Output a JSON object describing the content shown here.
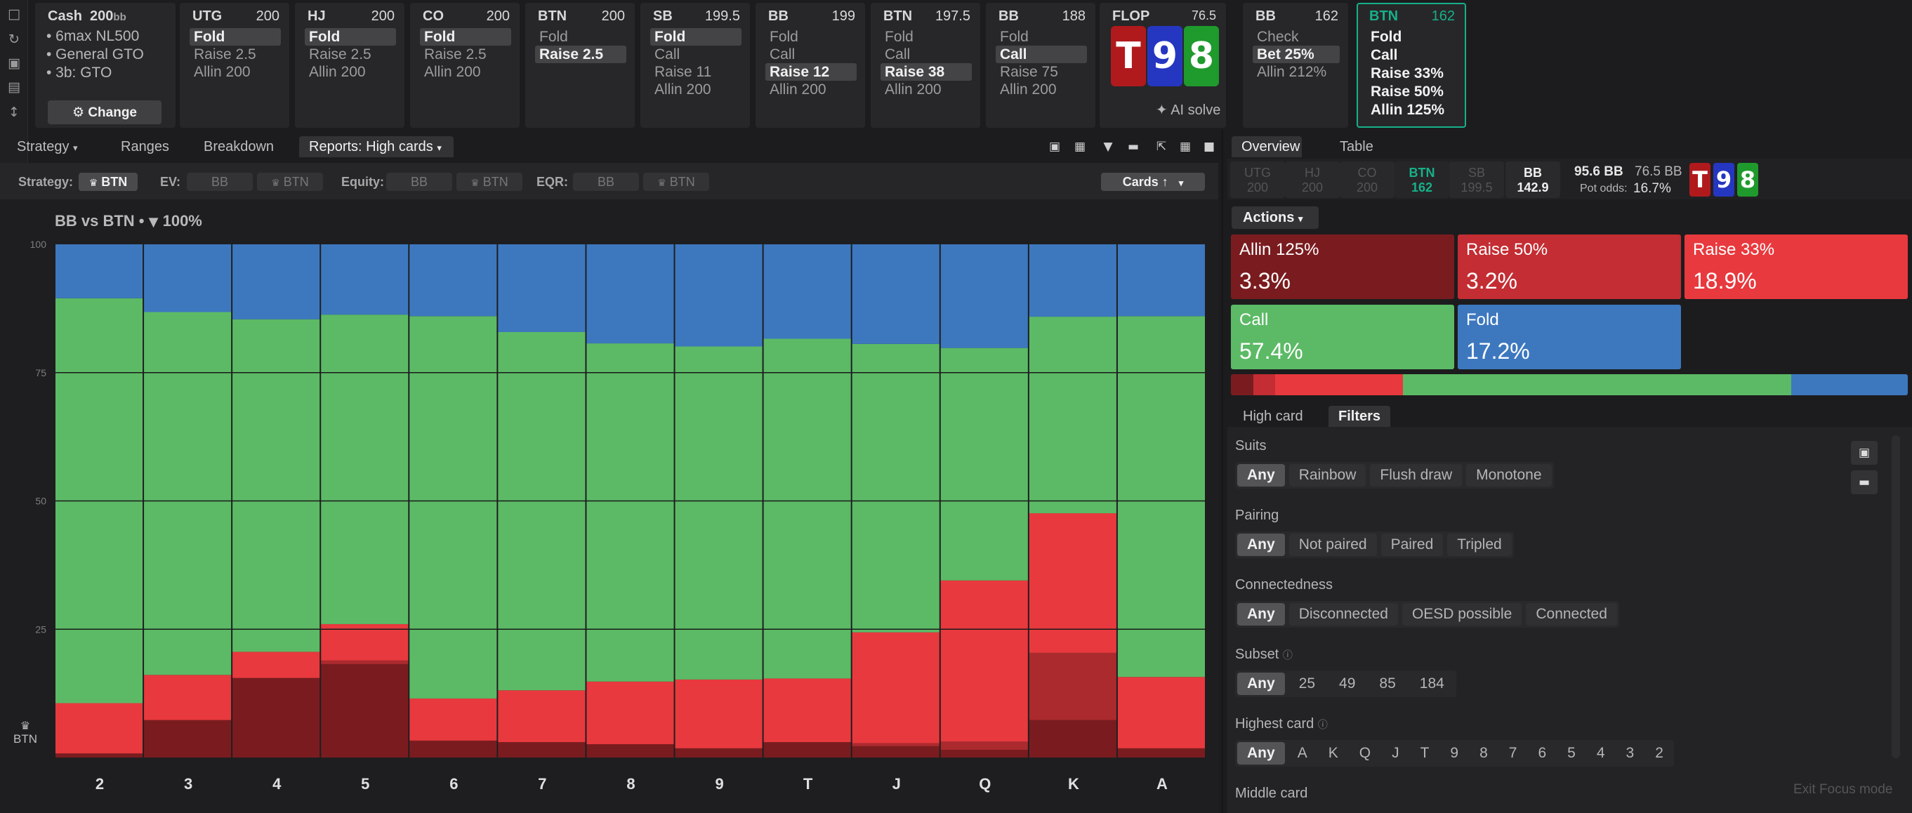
{
  "left_toolbar": {
    "icons": [
      "bookmark-icon",
      "refresh-icon",
      "save-icon",
      "gamepad-icon",
      "collapse-icon"
    ]
  },
  "game": {
    "type": "Cash",
    "stack": "200",
    "stack_unit": "bb",
    "lines": [
      "• 6max NL500",
      "• General GTO",
      "• 3b: GTO"
    ],
    "change_label": "Change"
  },
  "positions": [
    {
      "pos": "UTG",
      "stack": "200",
      "options": [
        "Fold",
        "Raise 2.5",
        "Allin 200"
      ],
      "selected": 0
    },
    {
      "pos": "HJ",
      "stack": "200",
      "options": [
        "Fold",
        "Raise 2.5",
        "Allin 200"
      ],
      "selected": 0
    },
    {
      "pos": "CO",
      "stack": "200",
      "options": [
        "Fold",
        "Raise 2.5",
        "Allin 200"
      ],
      "selected": 0
    },
    {
      "pos": "BTN",
      "stack": "200",
      "options": [
        "Fold",
        "Raise 2.5"
      ],
      "selected": 1
    },
    {
      "pos": "SB",
      "stack": "199.5",
      "options": [
        "Fold",
        "Call",
        "Raise 11",
        "Allin 200"
      ],
      "selected": 0
    },
    {
      "pos": "BB",
      "stack": "199",
      "options": [
        "Fold",
        "Call",
        "Raise 12",
        "Allin 200"
      ],
      "selected": 2
    },
    {
      "pos": "BTN",
      "stack": "197.5",
      "options": [
        "Fold",
        "Call",
        "Raise 38",
        "Allin 200"
      ],
      "selected": 2
    },
    {
      "pos": "BB",
      "stack": "188",
      "options": [
        "Fold",
        "Call",
        "Raise 75",
        "Allin 200"
      ],
      "selected": 1
    }
  ],
  "flop": {
    "label": "FLOP",
    "pot": "76.5",
    "cards": [
      "T",
      "9",
      "8"
    ],
    "ai_label": "AI solve"
  },
  "bb_post": {
    "pos": "BB",
    "stack": "162",
    "options": [
      "Check",
      "Bet 25%",
      "Allin 212%"
    ],
    "selected": 1
  },
  "active": {
    "pos": "BTN",
    "stack": "162",
    "options": [
      "Fold",
      "Call",
      "Raise 33%",
      "Raise 50%",
      "Allin 125%"
    ]
  },
  "tabs": {
    "strategy": "Strategy",
    "ranges": "Ranges",
    "breakdown": "Breakdown",
    "reports": "Reports: High cards"
  },
  "tool_icons": [
    "cube-icon",
    "bar-chart-icon",
    "filter-icon",
    "folder-icon",
    "shrink-icon",
    "grid-icon",
    "square-icon"
  ],
  "filter_bar": {
    "strategy_label": "Strategy:",
    "strategy_value": "BTN",
    "ev_label": "EV:",
    "ev_options": [
      "BB",
      "BTN"
    ],
    "equity_label": "Equity:",
    "equity_options": [
      "BB",
      "BTN"
    ],
    "eqr_label": "EQR:",
    "eqr_options": [
      "BB",
      "BTN"
    ],
    "sort_label": "Cards ↑"
  },
  "chart_title": "BB vs BTN •",
  "chart_filter_pct": "100%",
  "chart_player": "BTN",
  "chart_data": {
    "type": "bar",
    "stacked": true,
    "categories": [
      "2",
      "3",
      "4",
      "5",
      "6",
      "7",
      "8",
      "9",
      "T",
      "J",
      "Q",
      "K",
      "A"
    ],
    "ylim": [
      0,
      100
    ],
    "yticks": [
      "100",
      "75",
      "50",
      "25"
    ],
    "series": [
      {
        "color": "#7a1c1f",
        "values": [
          0.8,
          7.3,
          15.5,
          18.2,
          3.3,
          3.0,
          2.6,
          1.8,
          3.0,
          2.2,
          1.5,
          7.3,
          1.8
        ]
      },
      {
        "color": "#ab2a2e",
        "values": [
          0,
          0,
          0,
          0.7,
          0,
          0,
          0,
          0,
          0,
          0.6,
          1.6,
          13.1,
          0
        ]
      },
      {
        "color": "#e8393e",
        "values": [
          9.8,
          8.8,
          5.1,
          7.1,
          8.2,
          10.1,
          12.2,
          13.4,
          12.4,
          21.6,
          31.4,
          27.2,
          13.9
        ]
      },
      {
        "color": "#5cba66",
        "values": [
          78.9,
          70.7,
          64.8,
          60.3,
          74.5,
          69.8,
          65.9,
          64.9,
          66.2,
          56.2,
          45.3,
          38.3,
          70.3
        ]
      },
      {
        "color": "#3d78bf",
        "values": [
          10.5,
          13.2,
          14.6,
          13.7,
          14.0,
          17.1,
          19.3,
          19.9,
          18.4,
          19.4,
          20.2,
          14.1,
          14.0
        ]
      }
    ]
  },
  "right_tabs": {
    "overview": "Overview",
    "table": "Table"
  },
  "seats": [
    {
      "pos": "UTG",
      "stack": "200"
    },
    {
      "pos": "HJ",
      "stack": "200"
    },
    {
      "pos": "CO",
      "stack": "200"
    },
    {
      "pos": "BTN",
      "stack": "162"
    },
    {
      "pos": "SB",
      "stack": "199.5"
    },
    {
      "pos": "BB",
      "stack": "142.9"
    }
  ],
  "pot": {
    "main": "95.6 BB",
    "side": "76.5 BB",
    "odds_label": "Pot odds:",
    "odds": "16.7%"
  },
  "actions_label": "Actions",
  "actions": [
    {
      "name": "Allin 125%",
      "pct": "3.3%",
      "value": 3.3,
      "color": "#7a1c1f"
    },
    {
      "name": "Raise 50%",
      "pct": "3.2%",
      "value": 3.2,
      "color": "#c32d33"
    },
    {
      "name": "Raise 33%",
      "pct": "18.9%",
      "value": 18.9,
      "color": "#e8393e"
    },
    {
      "name": "Call",
      "pct": "57.4%",
      "value": 57.4,
      "color": "#5cba66"
    },
    {
      "name": "Fold",
      "pct": "17.2%",
      "value": 17.2,
      "color": "#3d78bf"
    }
  ],
  "sub_tabs": {
    "high": "High card",
    "filters": "Filters"
  },
  "filters": {
    "suits": {
      "label": "Suits",
      "options": [
        "Any",
        "Rainbow",
        "Flush draw",
        "Monotone"
      ]
    },
    "pairing": {
      "label": "Pairing",
      "options": [
        "Any",
        "Not paired",
        "Paired",
        "Tripled"
      ]
    },
    "connect": {
      "label": "Connectedness",
      "options": [
        "Any",
        "Disconnected",
        "OESD possible",
        "Connected"
      ]
    },
    "subset": {
      "label": "Subset",
      "options": [
        "Any",
        "25",
        "49",
        "85",
        "184"
      ]
    },
    "highest": {
      "label": "Highest card",
      "options": [
        "Any",
        "A",
        "K",
        "Q",
        "J",
        "T",
        "9",
        "8",
        "7",
        "6",
        "5",
        "4",
        "3",
        "2"
      ]
    },
    "middle": {
      "label": "Middle card"
    }
  },
  "exit_focus": "Exit Focus mode"
}
